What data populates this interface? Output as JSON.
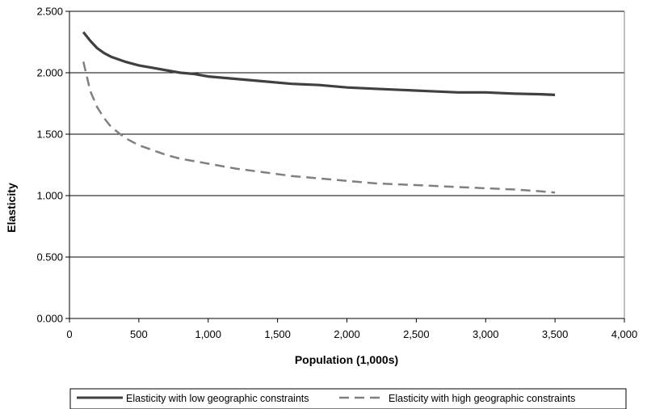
{
  "chart_data": {
    "type": "line",
    "title": "",
    "xlabel": "Population (1,000s)",
    "ylabel": "Elasticity",
    "xlim": [
      0,
      4000
    ],
    "ylim": [
      0,
      2.5
    ],
    "x_ticks": [
      0,
      500,
      1000,
      1500,
      2000,
      2500,
      3000,
      3500,
      4000
    ],
    "x_tick_labels": [
      "0",
      "500",
      "1,000",
      "1,500",
      "2,000",
      "2,500",
      "3,000",
      "3,500",
      "4,000"
    ],
    "y_ticks": [
      0,
      0.5,
      1.0,
      1.5,
      2.0,
      2.5
    ],
    "y_tick_labels": [
      "0.000",
      "0.500",
      "1.000",
      "1.500",
      "2.000",
      "2.500"
    ],
    "grid": "horizontal",
    "legend_position": "bottom",
    "series": [
      {
        "name": "Elasticity with low geographic constraints",
        "color": "#404040",
        "dash": "solid",
        "x": [
          100,
          150,
          200,
          250,
          300,
          400,
          500,
          600,
          700,
          800,
          900,
          1000,
          1200,
          1400,
          1600,
          1800,
          2000,
          2200,
          2400,
          2600,
          2800,
          3000,
          3200,
          3400,
          3500
        ],
        "y": [
          2.33,
          2.26,
          2.2,
          2.16,
          2.13,
          2.09,
          2.06,
          2.04,
          2.02,
          2.0,
          1.99,
          1.97,
          1.95,
          1.93,
          1.91,
          1.9,
          1.88,
          1.87,
          1.86,
          1.85,
          1.84,
          1.84,
          1.83,
          1.825,
          1.82
        ]
      },
      {
        "name": "Elasticity with high geographic constraints",
        "color": "#808080",
        "dash": "dashed",
        "x": [
          100,
          150,
          200,
          250,
          300,
          400,
          500,
          600,
          700,
          800,
          900,
          1000,
          1200,
          1400,
          1600,
          1800,
          2000,
          2200,
          2400,
          2600,
          2800,
          3000,
          3200,
          3400,
          3500
        ],
        "y": [
          2.09,
          1.85,
          1.72,
          1.63,
          1.56,
          1.47,
          1.41,
          1.37,
          1.33,
          1.3,
          1.28,
          1.26,
          1.22,
          1.19,
          1.16,
          1.14,
          1.12,
          1.1,
          1.09,
          1.08,
          1.07,
          1.06,
          1.05,
          1.035,
          1.025
        ]
      }
    ]
  }
}
